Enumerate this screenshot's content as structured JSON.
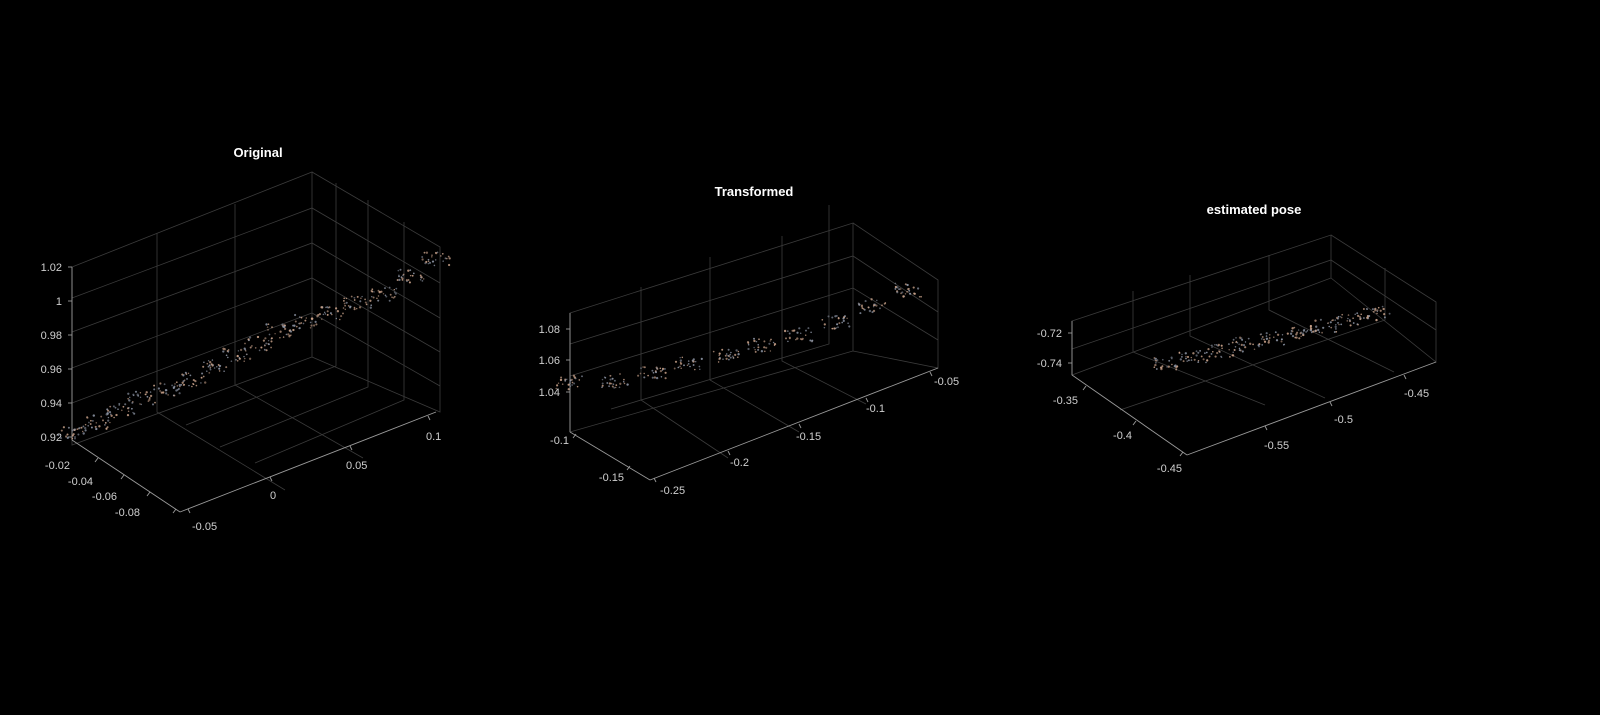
{
  "chart_data": [
    {
      "type": "scatter3d",
      "title": "Original",
      "x_ticks": [
        "0.1",
        "0.05",
        "0",
        "-0.05"
      ],
      "y_ticks": [
        "-0.02",
        "-0.04",
        "-0.06",
        "-0.08"
      ],
      "z_ticks": [
        "1.02",
        "1",
        "0.98",
        "0.96",
        "0.94",
        "0.92"
      ],
      "xlim": [
        -0.05,
        0.1
      ],
      "ylim": [
        -0.02,
        -0.08
      ],
      "zlim": [
        0.92,
        1.02
      ],
      "grid": true,
      "series": [
        {
          "color": "#c9a28a",
          "points": [
            [
              0.1,
              -0.02,
              1.01
            ],
            [
              0.09,
              -0.025,
              1.0
            ],
            [
              0.08,
              -0.03,
              0.99
            ],
            [
              0.07,
              -0.035,
              0.985
            ],
            [
              0.06,
              -0.04,
              0.98
            ],
            [
              0.05,
              -0.045,
              0.975
            ],
            [
              0.04,
              -0.05,
              0.97
            ],
            [
              0.03,
              -0.052,
              0.965
            ],
            [
              0.02,
              -0.055,
              0.96
            ],
            [
              0.01,
              -0.058,
              0.955
            ],
            [
              0.0,
              -0.06,
              0.95
            ],
            [
              -0.01,
              -0.065,
              0.945
            ],
            [
              -0.02,
              -0.07,
              0.94
            ],
            [
              -0.03,
              -0.072,
              0.935
            ],
            [
              -0.04,
              -0.075,
              0.93
            ],
            [
              -0.05,
              -0.08,
              0.925
            ]
          ]
        }
      ]
    },
    {
      "type": "scatter3d",
      "title": "Transformed",
      "x_ticks": [
        "-0.05",
        "-0.1",
        "-0.15",
        "-0.2",
        "-0.25"
      ],
      "y_ticks": [
        "-0.1",
        "-0.15"
      ],
      "z_ticks": [
        "1.08",
        "1.06",
        "1.04"
      ],
      "xlim": [
        -0.25,
        -0.05
      ],
      "ylim": [
        -0.1,
        -0.15
      ],
      "zlim": [
        1.03,
        1.09
      ],
      "grid": true,
      "series": [
        {
          "color": "#c9a28a",
          "points": [
            [
              -0.07,
              -0.1,
              1.075
            ],
            [
              -0.09,
              -0.105,
              1.07
            ],
            [
              -0.11,
              -0.11,
              1.065
            ],
            [
              -0.13,
              -0.115,
              1.062
            ],
            [
              -0.15,
              -0.12,
              1.06
            ],
            [
              -0.17,
              -0.125,
              1.058
            ],
            [
              -0.19,
              -0.13,
              1.057
            ],
            [
              -0.21,
              -0.135,
              1.056
            ],
            [
              -0.23,
              -0.14,
              1.055
            ],
            [
              -0.25,
              -0.15,
              1.055
            ]
          ]
        }
      ]
    },
    {
      "type": "scatter3d",
      "title": "estimated pose",
      "x_ticks": [
        "-0.45",
        "-0.5",
        "-0.55"
      ],
      "y_ticks": [
        "-0.35",
        "-0.4",
        "-0.45"
      ],
      "z_ticks": [
        "-0.72",
        "-0.74"
      ],
      "xlim": [
        -0.58,
        -0.43
      ],
      "ylim": [
        -0.34,
        -0.46
      ],
      "zlim": [
        -0.75,
        -0.71
      ],
      "grid": true,
      "series": [
        {
          "color": "#c9a28a",
          "points": [
            [
              -0.46,
              -0.35,
              -0.705
            ],
            [
              -0.47,
              -0.36,
              -0.71
            ],
            [
              -0.48,
              -0.37,
              -0.715
            ],
            [
              -0.49,
              -0.38,
              -0.72
            ],
            [
              -0.5,
              -0.39,
              -0.725
            ],
            [
              -0.51,
              -0.4,
              -0.73
            ],
            [
              -0.52,
              -0.41,
              -0.735
            ],
            [
              -0.53,
              -0.42,
              -0.74
            ],
            [
              -0.54,
              -0.43,
              -0.745
            ]
          ]
        }
      ]
    }
  ]
}
